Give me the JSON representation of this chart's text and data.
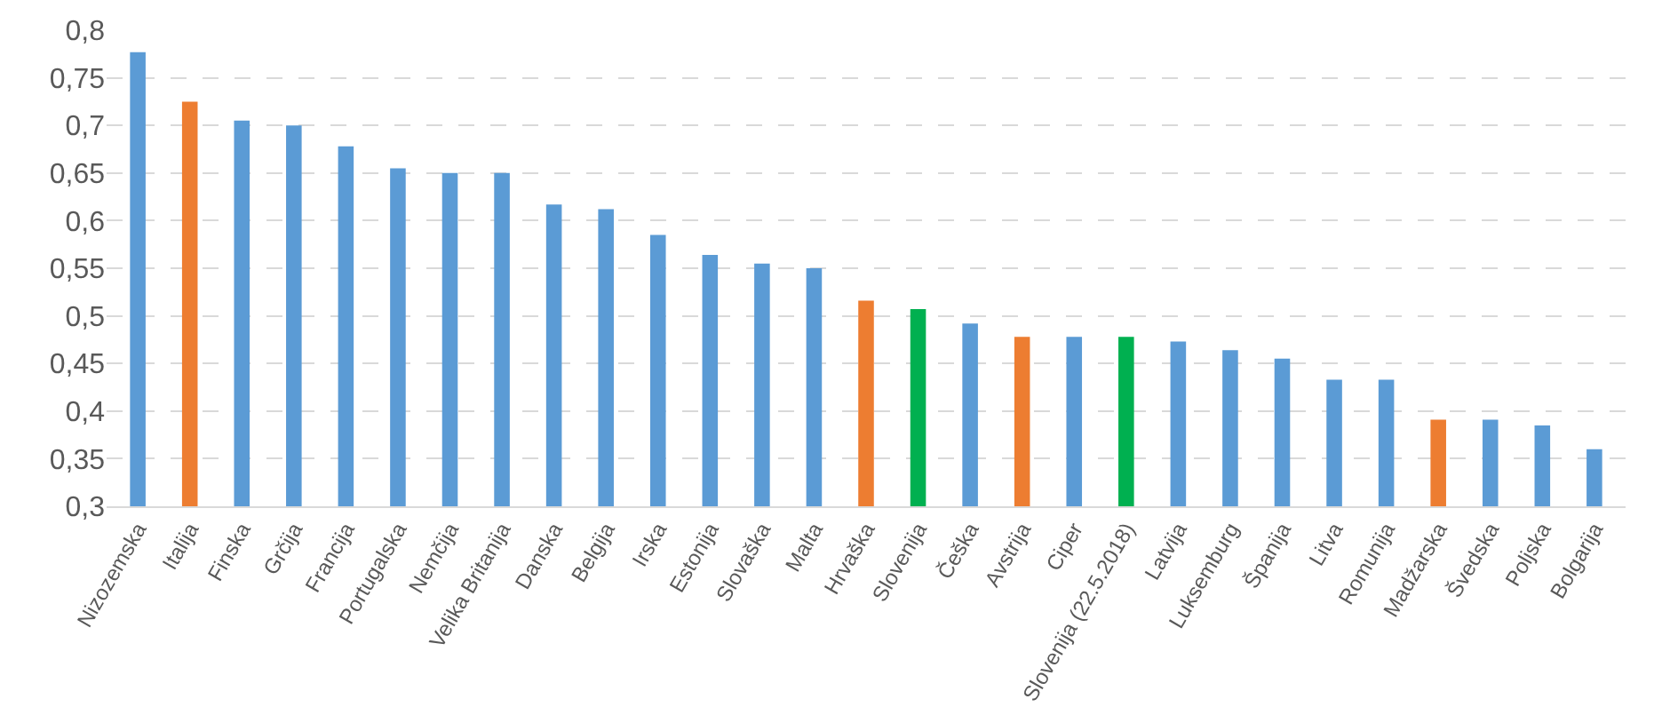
{
  "chart_data": {
    "type": "bar",
    "categories": [
      "Nizozemska",
      "Italija",
      "Finska",
      "Grčija",
      "Francija",
      "Portugalska",
      "Nemčija",
      "Velika Britanija",
      "Danska",
      "Belgija",
      "Irska",
      "Estonija",
      "Slovaška",
      "Malta",
      "Hrvaška",
      "Slovenija",
      "Češka",
      "Avstrija",
      "Ciper",
      "Slovenija (22.5.2018)",
      "Latvija",
      "Luksemburg",
      "Španija",
      "Litva",
      "Romunija",
      "Madžarska",
      "Švedska",
      "Poljska",
      "Bolgarija"
    ],
    "values": [
      0.777,
      0.725,
      0.705,
      0.7,
      0.678,
      0.655,
      0.65,
      0.65,
      0.617,
      0.612,
      0.585,
      0.564,
      0.555,
      0.55,
      0.516,
      0.507,
      0.492,
      0.478,
      0.478,
      0.478,
      0.473,
      0.464,
      0.455,
      0.433,
      0.433,
      0.391,
      0.391,
      0.385,
      0.36
    ],
    "colors": [
      "#5b9bd5",
      "#ed7d31",
      "#5b9bd5",
      "#5b9bd5",
      "#5b9bd5",
      "#5b9bd5",
      "#5b9bd5",
      "#5b9bd5",
      "#5b9bd5",
      "#5b9bd5",
      "#5b9bd5",
      "#5b9bd5",
      "#5b9bd5",
      "#5b9bd5",
      "#ed7d31",
      "#00b050",
      "#5b9bd5",
      "#ed7d31",
      "#5b9bd5",
      "#00b050",
      "#5b9bd5",
      "#5b9bd5",
      "#5b9bd5",
      "#5b9bd5",
      "#5b9bd5",
      "#ed7d31",
      "#5b9bd5",
      "#5b9bd5",
      "#5b9bd5"
    ],
    "ylim": [
      0.3,
      0.8
    ],
    "yticks": [
      {
        "value": 0.3,
        "label": "0,3"
      },
      {
        "value": 0.35,
        "label": "0,35"
      },
      {
        "value": 0.4,
        "label": "0,4"
      },
      {
        "value": 0.45,
        "label": "0,45"
      },
      {
        "value": 0.5,
        "label": "0,5"
      },
      {
        "value": 0.55,
        "label": "0,55"
      },
      {
        "value": 0.6,
        "label": "0,6"
      },
      {
        "value": 0.65,
        "label": "0,65"
      },
      {
        "value": 0.7,
        "label": "0,7"
      },
      {
        "value": 0.75,
        "label": "0,75"
      },
      {
        "value": 0.8,
        "label": "0,8"
      }
    ],
    "grid": "y",
    "legend": false
  }
}
